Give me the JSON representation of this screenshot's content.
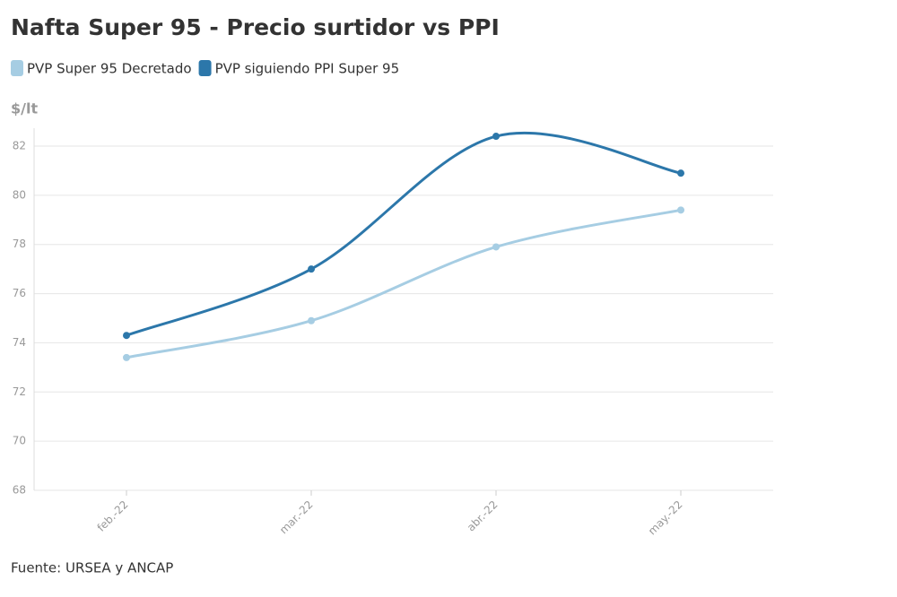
{
  "chart_data": {
    "type": "line",
    "title": "Nafta Super 95 - Precio surtidor vs PPI",
    "y_label": "$/lt",
    "source": "Fuente: URSEA y ANCAP",
    "categories": [
      "feb.-22",
      "mar.-22",
      "abr.-22",
      "may.-22"
    ],
    "series": [
      {
        "name": "PVP Super 95 Decretado",
        "color": "#a6cde3",
        "values": [
          73.4,
          74.9,
          77.9,
          79.4
        ]
      },
      {
        "name": "PVP siguiendo PPI Super 95",
        "color": "#2c77aa",
        "values": [
          74.3,
          77.0,
          82.4,
          80.9
        ]
      }
    ],
    "ylim": [
      68,
      82
    ],
    "yticks": [
      68,
      70,
      72,
      74,
      76,
      78,
      80,
      82
    ],
    "grid": true
  }
}
